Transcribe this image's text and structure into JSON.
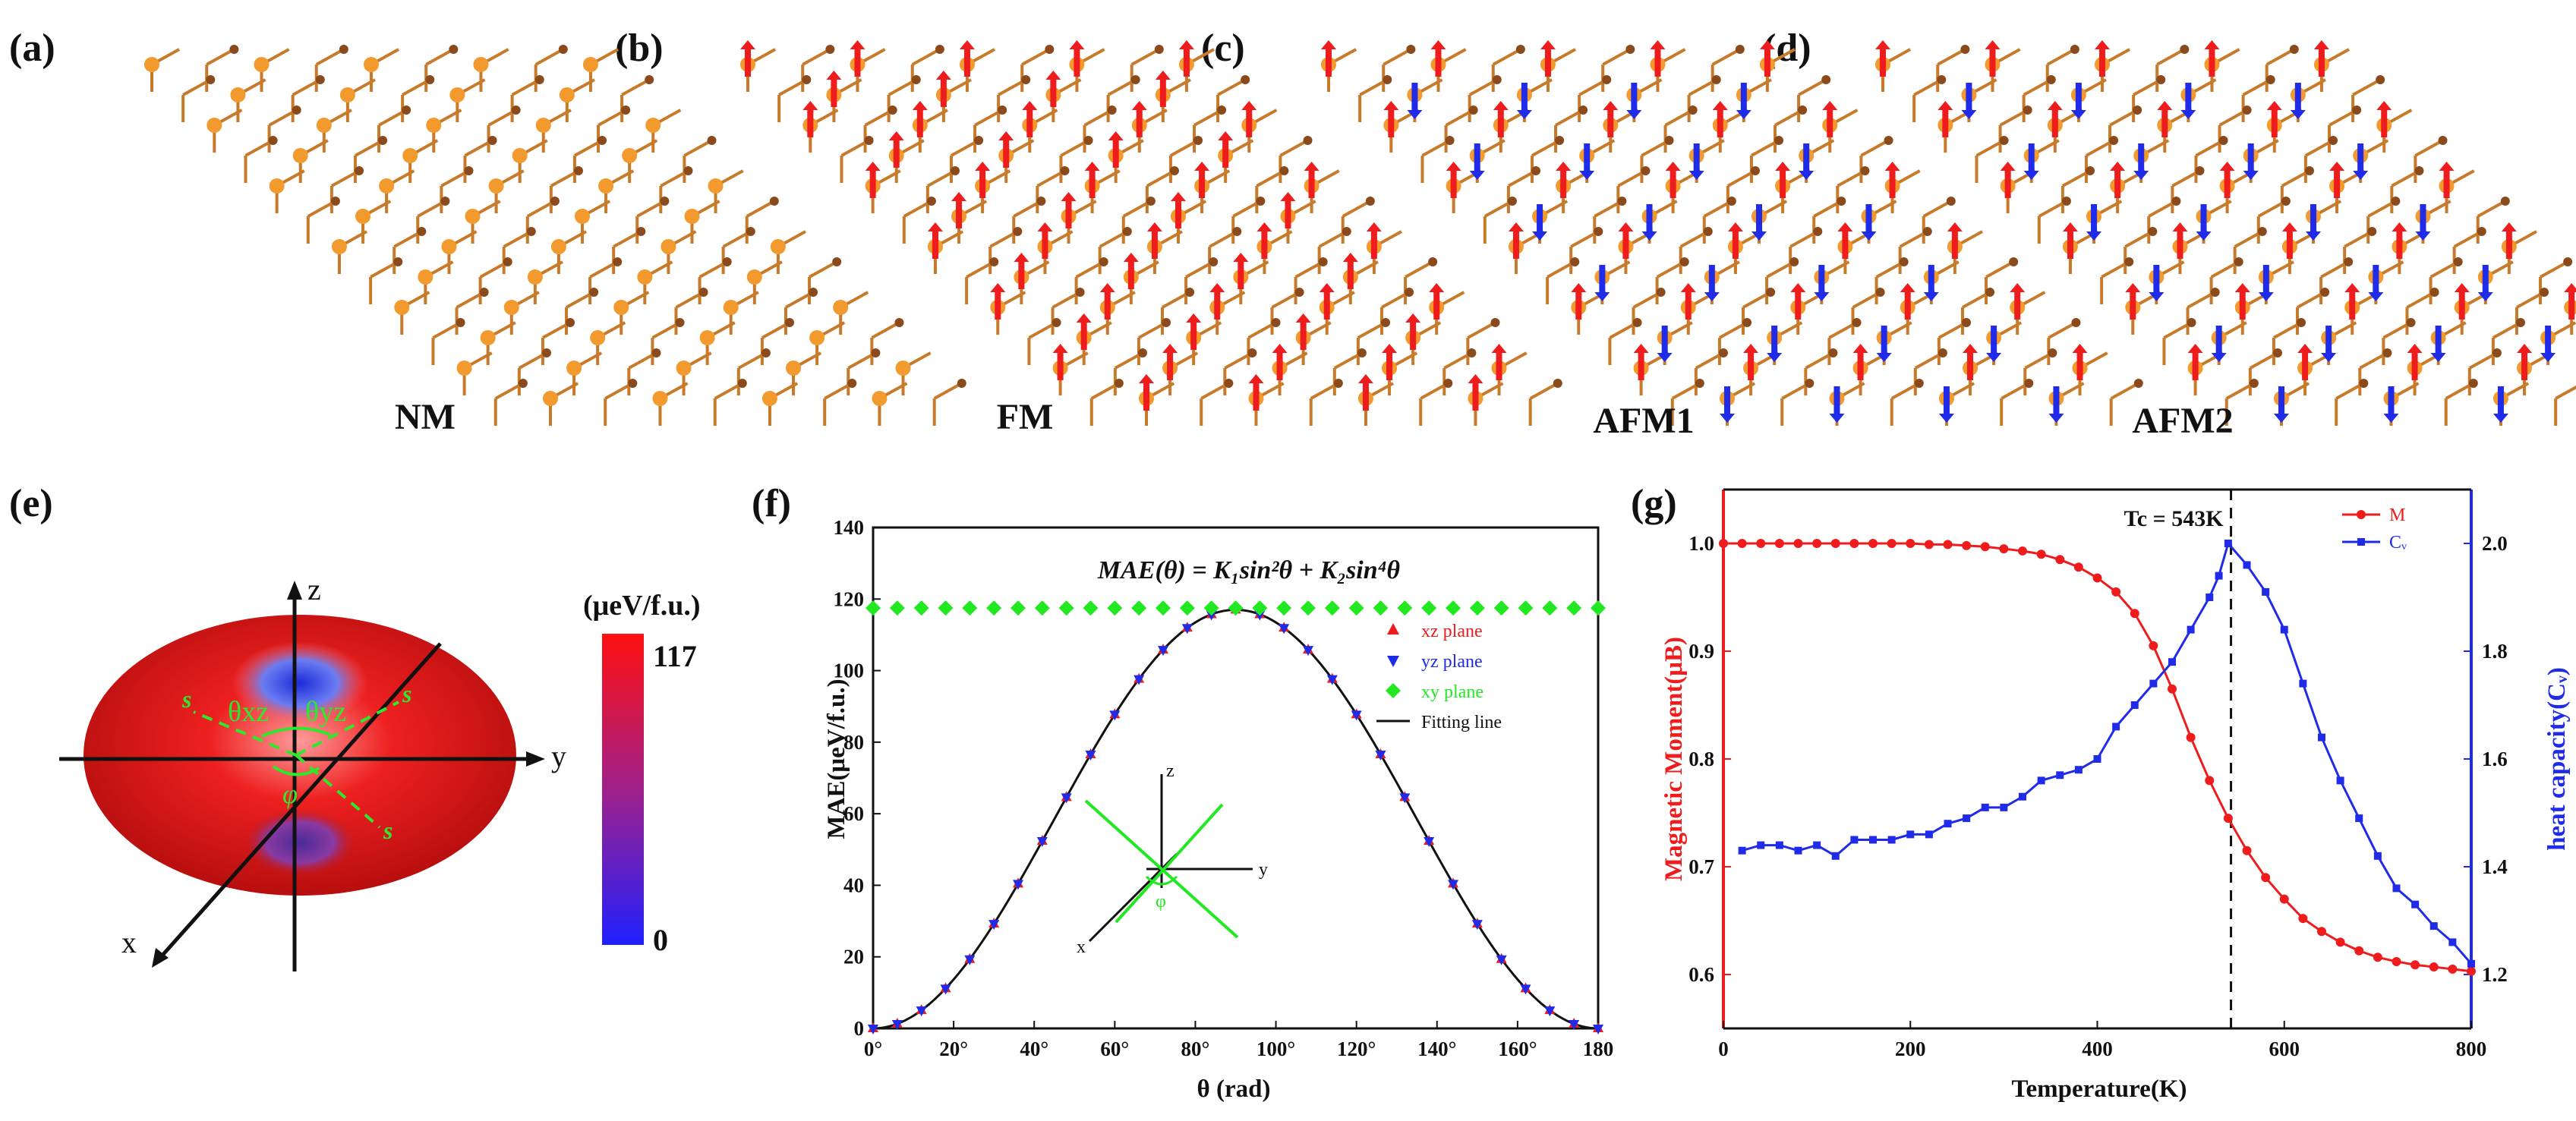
{
  "panels": {
    "a": {
      "label": "(a)",
      "title": "NM",
      "color": "#e8962e"
    },
    "b": {
      "label": "(b)",
      "title": "FM"
    },
    "c": {
      "label": "(c)",
      "title": "AFM1"
    },
    "d": {
      "label": "(d)",
      "title": "AFM2"
    },
    "e": {
      "label": "(e)",
      "axis_z": "z",
      "axis_y": "y",
      "axis_x": "x",
      "angle_xz": "θxz",
      "angle_yz": "θyz",
      "angle_phi": "φ",
      "s_label": "s",
      "colorbar_unit": "(μeV/f.u.)",
      "colorbar_max": "117",
      "colorbar_min": "0"
    }
  },
  "colors": {
    "red": "#ee1c1c",
    "blue": "#1f2be8",
    "green": "#22e822",
    "atom_gold": "#f29a2e",
    "atom_brown": "#8b4a1c"
  },
  "chart_data": [
    {
      "panel": "(f)",
      "type": "scatter",
      "equation": "MAE(θ) = K₁sin²θ + K₂sin⁴θ",
      "xlabel": "θ (rad)",
      "ylabel": "MAE(μeV/f.u.)",
      "xlim": [
        0,
        180
      ],
      "ylim": [
        0,
        140
      ],
      "x_ticks": [
        "0°",
        "20°",
        "40°",
        "60°",
        "80°",
        "100°",
        "120°",
        "140°",
        "160°",
        "180"
      ],
      "y_ticks": [
        "0",
        "20",
        "40",
        "60",
        "80",
        "100",
        "120",
        "140"
      ],
      "amplitude": 117,
      "legend": [
        "xz plane",
        "yz plane",
        "xy plane",
        "Fitting line"
      ],
      "series": [
        {
          "name": "xz plane",
          "marker": "triangle-up",
          "color": "#ee1c1c"
        },
        {
          "name": "yz plane",
          "marker": "triangle-down",
          "color": "#1f2be8"
        },
        {
          "name": "xy plane",
          "marker": "diamond",
          "color": "#22e822",
          "constant": 117.5
        },
        {
          "name": "Fitting line",
          "marker": "line",
          "color": "#111111"
        }
      ],
      "inset_labels": {
        "z": "z",
        "y": "y",
        "x": "x",
        "phi": "φ"
      }
    },
    {
      "panel": "(g)",
      "type": "line",
      "xlabel": "Temperature(K)",
      "ylabel_left": "Magnetic Moment(μB)",
      "ylabel_right": "heat capacity(Cᵥ)",
      "xlim": [
        0,
        800
      ],
      "ylim_left": [
        0.55,
        1.05
      ],
      "ylim_right": [
        1.1,
        2.1
      ],
      "x_ticks": [
        "0",
        "200",
        "400",
        "600",
        "800"
      ],
      "y_left_ticks": [
        "0.6",
        "0.7",
        "0.8",
        "0.9",
        "1.0"
      ],
      "y_right_ticks": [
        "1.2",
        "1.4",
        "1.6",
        "1.8",
        "2.0"
      ],
      "tc_label": "Tc = 543K",
      "tc": 543,
      "legend": [
        "M",
        "Cᵥ"
      ],
      "M": {
        "x": [
          0,
          20,
          40,
          60,
          80,
          100,
          120,
          140,
          160,
          180,
          200,
          220,
          240,
          260,
          280,
          300,
          320,
          340,
          360,
          380,
          400,
          420,
          440,
          460,
          480,
          500,
          520,
          540,
          560,
          580,
          600,
          620,
          640,
          660,
          680,
          700,
          720,
          740,
          760,
          780,
          800
        ],
        "y": [
          1.0,
          1.0,
          1.0,
          1.0,
          1.0,
          1.0,
          1.0,
          1.0,
          1.0,
          1.0,
          1.0,
          0.999,
          0.999,
          0.998,
          0.997,
          0.995,
          0.993,
          0.99,
          0.985,
          0.978,
          0.968,
          0.955,
          0.935,
          0.905,
          0.865,
          0.82,
          0.78,
          0.745,
          0.715,
          0.69,
          0.67,
          0.652,
          0.64,
          0.63,
          0.622,
          0.616,
          0.612,
          0.609,
          0.607,
          0.605,
          0.603
        ]
      },
      "Cv": {
        "x": [
          20,
          40,
          60,
          80,
          100,
          120,
          140,
          160,
          180,
          200,
          220,
          240,
          260,
          280,
          300,
          320,
          340,
          360,
          380,
          400,
          420,
          440,
          460,
          480,
          500,
          520,
          530,
          540,
          560,
          580,
          600,
          620,
          640,
          660,
          680,
          700,
          720,
          740,
          760,
          780,
          800
        ],
        "y": [
          1.43,
          1.44,
          1.44,
          1.43,
          1.44,
          1.42,
          1.45,
          1.45,
          1.45,
          1.46,
          1.46,
          1.48,
          1.49,
          1.51,
          1.51,
          1.53,
          1.56,
          1.57,
          1.58,
          1.6,
          1.66,
          1.7,
          1.74,
          1.78,
          1.84,
          1.9,
          1.94,
          2.0,
          1.96,
          1.91,
          1.84,
          1.74,
          1.64,
          1.56,
          1.49,
          1.42,
          1.36,
          1.33,
          1.29,
          1.26,
          1.22
        ]
      }
    }
  ]
}
